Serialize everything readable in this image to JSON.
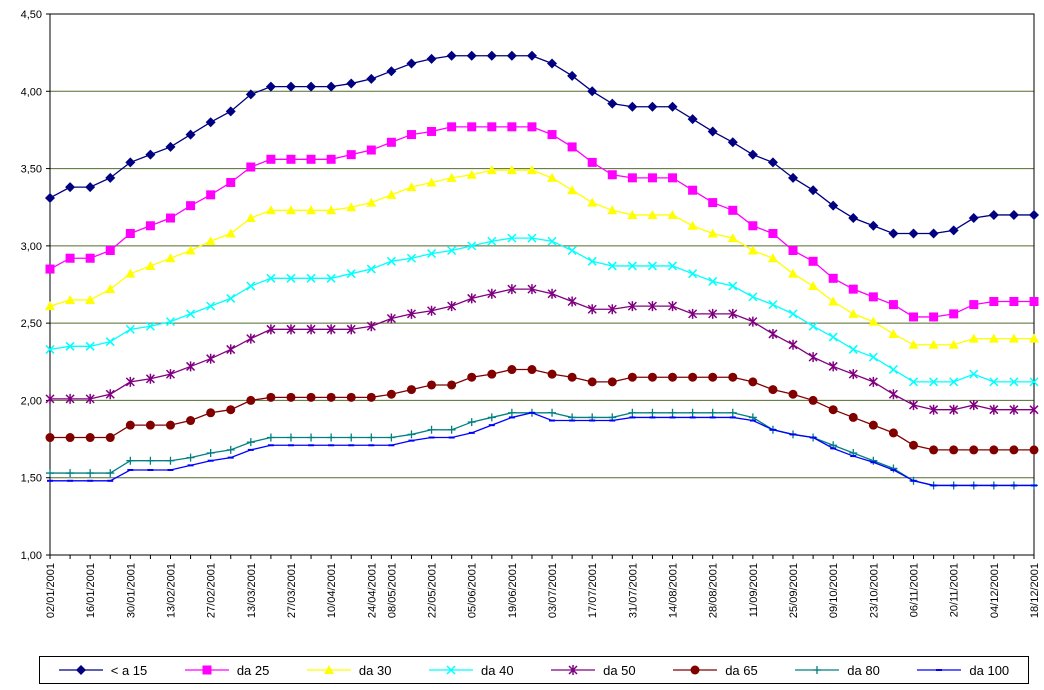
{
  "chart_data": {
    "type": "line",
    "title": "",
    "xlabel": "",
    "ylabel": "",
    "ylim": [
      1.0,
      4.5
    ],
    "yticks": [
      "1,00",
      "1,50",
      "2,00",
      "2,50",
      "3,00",
      "3,50",
      "4,00",
      "4,50"
    ],
    "ytick_values": [
      1.0,
      1.5,
      2.0,
      2.5,
      3.0,
      3.5,
      4.0,
      4.5
    ],
    "grid": "horizontal",
    "legend_position": "bottom",
    "x": [
      "02/01/2001",
      "09/01/2001",
      "16/01/2001",
      "23/01/2001",
      "30/01/2001",
      "06/02/2001",
      "13/02/2001",
      "20/02/2001",
      "27/02/2001",
      "06/03/2001",
      "13/03/2001",
      "20/03/2001",
      "27/03/2001",
      "03/04/2001",
      "10/04/2001",
      "17/04/2001",
      "24/04/2001",
      "08/05/2001",
      "15/05/2001",
      "22/05/2001",
      "29/05/2001",
      "05/06/2001",
      "12/06/2001",
      "19/06/2001",
      "26/06/2001",
      "03/07/2001",
      "10/07/2001",
      "17/07/2001",
      "24/07/2001",
      "31/07/2001",
      "07/08/2001",
      "14/08/2001",
      "21/08/2001",
      "28/08/2001",
      "04/09/2001",
      "11/09/2001",
      "18/09/2001",
      "25/09/2001",
      "02/10/2001",
      "09/10/2001",
      "16/10/2001",
      "23/10/2001",
      "30/10/2001",
      "06/11/2001",
      "13/11/2001",
      "20/11/2001",
      "27/11/2001",
      "04/12/2001",
      "11/12/2001",
      "18/12/2001"
    ],
    "x_tick_labels": [
      "02/01/2001",
      "16/01/2001",
      "30/01/2001",
      "13/02/2001",
      "27/02/2001",
      "13/03/2001",
      "27/03/2001",
      "10/04/2001",
      "24/04/2001",
      "08/05/2001",
      "22/05/2001",
      "05/06/2001",
      "19/06/2001",
      "03/07/2001",
      "17/07/2001",
      "31/07/2001",
      "14/08/2001",
      "28/08/2001",
      "11/09/2001",
      "25/09/2001",
      "09/10/2001",
      "23/10/2001",
      "06/11/2001",
      "20/11/2001",
      "04/12/2001",
      "18/12/2001"
    ],
    "series": [
      {
        "name": "< a 15",
        "color": "#000080",
        "marker": "diamond",
        "values": [
          3.31,
          3.38,
          3.38,
          3.44,
          3.54,
          3.59,
          3.64,
          3.72,
          3.8,
          3.87,
          3.98,
          4.03,
          4.03,
          4.03,
          4.03,
          4.05,
          4.08,
          4.13,
          4.18,
          4.21,
          4.23,
          4.23,
          4.23,
          4.23,
          4.23,
          4.18,
          4.1,
          4.0,
          3.92,
          3.9,
          3.9,
          3.9,
          3.82,
          3.74,
          3.67,
          3.59,
          3.54,
          3.44,
          3.36,
          3.26,
          3.18,
          3.13,
          3.08,
          3.08,
          3.08,
          3.1,
          3.18,
          3.2,
          3.2,
          3.2
        ]
      },
      {
        "name": "da 25",
        "color": "#ff00ff",
        "marker": "square",
        "values": [
          2.85,
          2.92,
          2.92,
          2.97,
          3.08,
          3.13,
          3.18,
          3.26,
          3.33,
          3.41,
          3.51,
          3.56,
          3.56,
          3.56,
          3.56,
          3.59,
          3.62,
          3.67,
          3.72,
          3.74,
          3.77,
          3.77,
          3.77,
          3.77,
          3.77,
          3.72,
          3.64,
          3.54,
          3.46,
          3.44,
          3.44,
          3.44,
          3.36,
          3.28,
          3.23,
          3.13,
          3.08,
          2.97,
          2.9,
          2.79,
          2.72,
          2.67,
          2.62,
          2.54,
          2.54,
          2.56,
          2.62,
          2.64,
          2.64,
          2.64
        ]
      },
      {
        "name": "da 30",
        "color": "#ffff00",
        "marker": "triangle",
        "values": [
          2.61,
          2.65,
          2.65,
          2.72,
          2.82,
          2.87,
          2.92,
          2.97,
          3.03,
          3.08,
          3.18,
          3.23,
          3.23,
          3.23,
          3.23,
          3.25,
          3.28,
          3.33,
          3.38,
          3.41,
          3.44,
          3.46,
          3.49,
          3.49,
          3.49,
          3.44,
          3.36,
          3.28,
          3.23,
          3.2,
          3.2,
          3.2,
          3.13,
          3.08,
          3.05,
          2.97,
          2.92,
          2.82,
          2.74,
          2.64,
          2.56,
          2.51,
          2.43,
          2.36,
          2.36,
          2.36,
          2.4,
          2.4,
          2.4,
          2.4
        ]
      },
      {
        "name": "da 40",
        "color": "#00ffff",
        "marker": "x",
        "values": [
          2.33,
          2.35,
          2.35,
          2.38,
          2.46,
          2.48,
          2.51,
          2.56,
          2.61,
          2.66,
          2.74,
          2.79,
          2.79,
          2.79,
          2.79,
          2.82,
          2.85,
          2.9,
          2.92,
          2.95,
          2.97,
          3.0,
          3.03,
          3.05,
          3.05,
          3.03,
          2.97,
          2.9,
          2.87,
          2.87,
          2.87,
          2.87,
          2.82,
          2.77,
          2.74,
          2.67,
          2.62,
          2.56,
          2.48,
          2.41,
          2.33,
          2.28,
          2.2,
          2.12,
          2.12,
          2.12,
          2.17,
          2.12,
          2.12,
          2.12
        ]
      },
      {
        "name": "da 50",
        "color": "#800080",
        "marker": "star",
        "values": [
          2.01,
          2.01,
          2.01,
          2.04,
          2.12,
          2.14,
          2.17,
          2.22,
          2.27,
          2.33,
          2.4,
          2.46,
          2.46,
          2.46,
          2.46,
          2.46,
          2.48,
          2.53,
          2.56,
          2.58,
          2.61,
          2.66,
          2.69,
          2.72,
          2.72,
          2.69,
          2.64,
          2.59,
          2.59,
          2.61,
          2.61,
          2.61,
          2.56,
          2.56,
          2.56,
          2.51,
          2.43,
          2.36,
          2.28,
          2.22,
          2.17,
          2.12,
          2.04,
          1.97,
          1.94,
          1.94,
          1.97,
          1.94,
          1.94,
          1.94
        ]
      },
      {
        "name": "da 65",
        "color": "#800000",
        "marker": "circle",
        "values": [
          1.76,
          1.76,
          1.76,
          1.76,
          1.84,
          1.84,
          1.84,
          1.87,
          1.92,
          1.94,
          2.0,
          2.02,
          2.02,
          2.02,
          2.02,
          2.02,
          2.02,
          2.04,
          2.07,
          2.1,
          2.1,
          2.15,
          2.17,
          2.2,
          2.2,
          2.17,
          2.15,
          2.12,
          2.12,
          2.15,
          2.15,
          2.15,
          2.15,
          2.15,
          2.15,
          2.12,
          2.07,
          2.04,
          2.0,
          1.94,
          1.89,
          1.84,
          1.79,
          1.71,
          1.68,
          1.68,
          1.68,
          1.68,
          1.68,
          1.68
        ]
      },
      {
        "name": "da 80",
        "color": "#008080",
        "marker": "plus",
        "values": [
          1.53,
          1.53,
          1.53,
          1.53,
          1.61,
          1.61,
          1.61,
          1.63,
          1.66,
          1.68,
          1.73,
          1.76,
          1.76,
          1.76,
          1.76,
          1.76,
          1.76,
          1.76,
          1.78,
          1.81,
          1.81,
          1.86,
          1.89,
          1.92,
          1.92,
          1.92,
          1.89,
          1.89,
          1.89,
          1.92,
          1.92,
          1.92,
          1.92,
          1.92,
          1.92,
          1.89,
          1.81,
          1.78,
          1.76,
          1.71,
          1.66,
          1.61,
          1.56,
          1.48,
          1.45,
          1.45,
          1.45,
          1.45,
          1.45,
          1.45
        ]
      },
      {
        "name": "da 100",
        "color": "#0000ff",
        "marker": "dash",
        "values": [
          1.48,
          1.48,
          1.48,
          1.48,
          1.55,
          1.55,
          1.55,
          1.58,
          1.61,
          1.63,
          1.68,
          1.71,
          1.71,
          1.71,
          1.71,
          1.71,
          1.71,
          1.71,
          1.74,
          1.76,
          1.76,
          1.79,
          1.84,
          1.89,
          1.92,
          1.87,
          1.87,
          1.87,
          1.87,
          1.89,
          1.89,
          1.89,
          1.89,
          1.89,
          1.89,
          1.87,
          1.81,
          1.78,
          1.76,
          1.69,
          1.64,
          1.6,
          1.55,
          1.48,
          1.45,
          1.45,
          1.45,
          1.45,
          1.45,
          1.45
        ]
      }
    ]
  }
}
